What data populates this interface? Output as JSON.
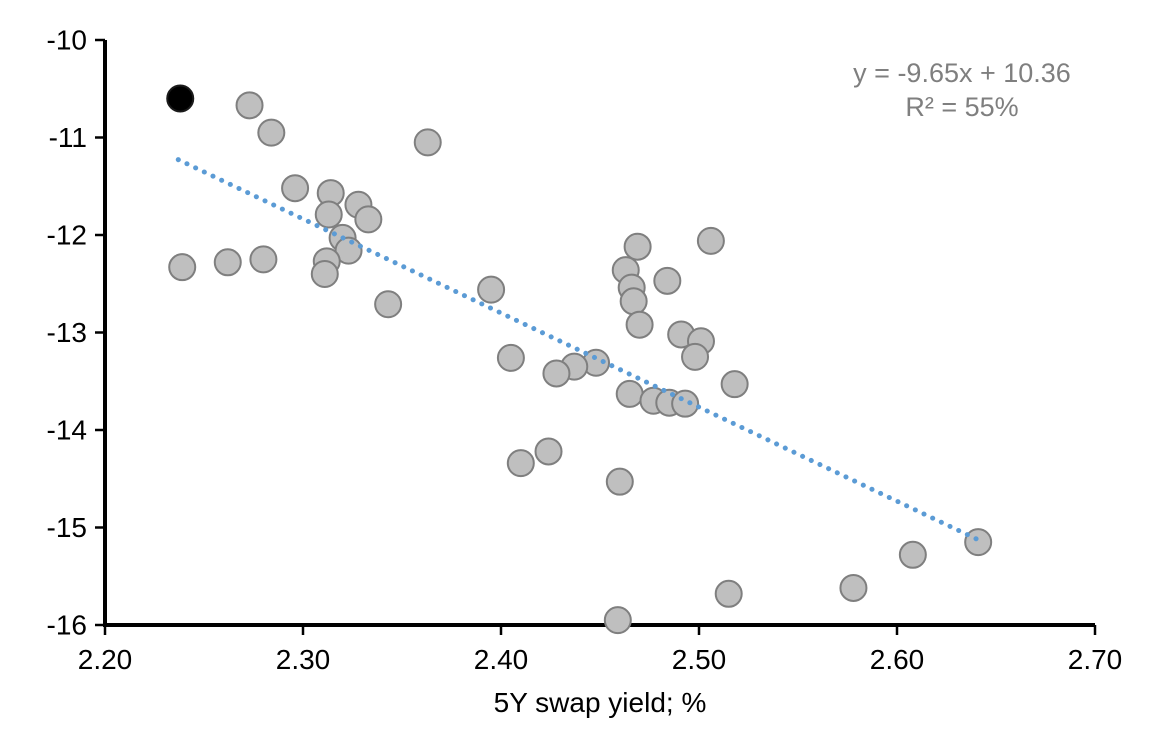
{
  "chart_data": {
    "type": "scatter",
    "title": "",
    "xlabel": "5Y swap yield; %",
    "ylabel": "",
    "xlim": [
      2.2,
      2.7
    ],
    "ylim": [
      -16,
      -10
    ],
    "x_ticks": [
      2.2,
      2.3,
      2.4,
      2.5,
      2.6,
      2.7
    ],
    "x_tick_labels": [
      "2.20",
      "2.30",
      "2.40",
      "2.50",
      "2.60",
      "2.70"
    ],
    "y_ticks": [
      -10,
      -11,
      -12,
      -13,
      -14,
      -15,
      -16
    ],
    "y_tick_labels": [
      "-10",
      "-11",
      "-12",
      "-13",
      "-14",
      "-15",
      "-16"
    ],
    "grid": false,
    "legend": false,
    "series": [
      {
        "name": "observations",
        "marker": "circle",
        "fill": "#BFBFBF",
        "stroke": "#7F7F7F",
        "points": [
          [
            2.273,
            -10.67
          ],
          [
            2.284,
            -10.95
          ],
          [
            2.363,
            -11.05
          ],
          [
            2.296,
            -11.52
          ],
          [
            2.314,
            -11.57
          ],
          [
            2.328,
            -11.69
          ],
          [
            2.313,
            -11.79
          ],
          [
            2.333,
            -11.84
          ],
          [
            2.32,
            -12.03
          ],
          [
            2.323,
            -12.16
          ],
          [
            2.506,
            -12.06
          ],
          [
            2.469,
            -12.12
          ],
          [
            2.239,
            -12.33
          ],
          [
            2.262,
            -12.28
          ],
          [
            2.28,
            -12.25
          ],
          [
            2.312,
            -12.27
          ],
          [
            2.311,
            -12.4
          ],
          [
            2.463,
            -12.36
          ],
          [
            2.484,
            -12.47
          ],
          [
            2.466,
            -12.54
          ],
          [
            2.395,
            -12.56
          ],
          [
            2.467,
            -12.68
          ],
          [
            2.343,
            -12.71
          ],
          [
            2.47,
            -12.92
          ],
          [
            2.491,
            -13.02
          ],
          [
            2.501,
            -13.09
          ],
          [
            2.498,
            -13.25
          ],
          [
            2.405,
            -13.26
          ],
          [
            2.448,
            -13.31
          ],
          [
            2.437,
            -13.35
          ],
          [
            2.428,
            -13.42
          ],
          [
            2.518,
            -13.53
          ],
          [
            2.465,
            -13.63
          ],
          [
            2.477,
            -13.7
          ],
          [
            2.485,
            -13.72
          ],
          [
            2.493,
            -13.73
          ],
          [
            2.424,
            -14.22
          ],
          [
            2.41,
            -14.34
          ],
          [
            2.46,
            -14.53
          ],
          [
            2.641,
            -15.15
          ],
          [
            2.608,
            -15.28
          ],
          [
            2.578,
            -15.62
          ],
          [
            2.515,
            -15.68
          ],
          [
            2.459,
            -15.95
          ]
        ]
      },
      {
        "name": "highlighted-observation",
        "marker": "circle",
        "fill": "#000000",
        "stroke": "#1A1A1A",
        "points": [
          [
            2.238,
            -10.6
          ]
        ]
      }
    ],
    "trendline": {
      "slope": -9.65,
      "intercept": 10.36,
      "x_start": 2.237,
      "x_end": 2.643,
      "color": "#5B9BD5",
      "style": "dotted"
    },
    "annotation": {
      "line1": "y = -9.65x + 10.36",
      "line2": "R² = 55%",
      "color": "#7F7F7F"
    },
    "axis_color": "#000000"
  }
}
